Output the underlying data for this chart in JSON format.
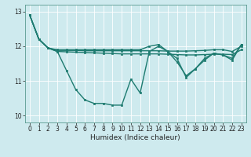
{
  "xlabel": "Humidex (Indice chaleur)",
  "xlim": [
    -0.5,
    23.5
  ],
  "ylim": [
    9.8,
    13.2
  ],
  "yticks": [
    10,
    11,
    12,
    13
  ],
  "xticks": [
    0,
    1,
    2,
    3,
    4,
    5,
    6,
    7,
    8,
    9,
    10,
    11,
    12,
    13,
    14,
    15,
    16,
    17,
    18,
    19,
    20,
    21,
    22,
    23
  ],
  "background_color": "#ceeaee",
  "line_color": "#1e7b70",
  "grid_color": "#b0d4d8",
  "lines": [
    [
      12.9,
      12.2,
      11.95,
      11.85,
      11.3,
      10.75,
      10.45,
      10.35,
      10.35,
      10.3,
      10.3,
      11.05,
      10.65,
      11.85,
      12.0,
      11.85,
      11.55,
      11.15,
      11.35,
      11.65,
      11.8,
      11.75,
      11.65,
      12.05
    ],
    [
      12.9,
      12.2,
      11.95,
      11.85,
      11.84,
      11.83,
      11.82,
      11.81,
      11.8,
      11.79,
      11.78,
      11.78,
      11.78,
      11.78,
      11.78,
      11.77,
      11.76,
      11.75,
      11.75,
      11.76,
      11.77,
      11.77,
      11.76,
      11.9
    ],
    [
      12.9,
      12.2,
      11.95,
      11.88,
      11.88,
      11.88,
      11.87,
      11.87,
      11.87,
      11.87,
      11.87,
      11.87,
      11.87,
      11.87,
      11.87,
      11.86,
      11.86,
      11.86,
      11.87,
      11.88,
      11.9,
      11.9,
      11.85,
      12.0
    ],
    [
      12.9,
      12.2,
      11.95,
      11.9,
      11.9,
      11.9,
      11.9,
      11.9,
      11.9,
      11.9,
      11.9,
      11.9,
      11.9,
      12.0,
      12.05,
      11.85,
      11.65,
      11.1,
      11.35,
      11.6,
      11.8,
      11.75,
      11.6,
      12.05
    ]
  ],
  "line_width": 1.0,
  "marker": "s",
  "marker_size": 2.0,
  "tick_fontsize": 5.5,
  "xlabel_fontsize": 6.5
}
